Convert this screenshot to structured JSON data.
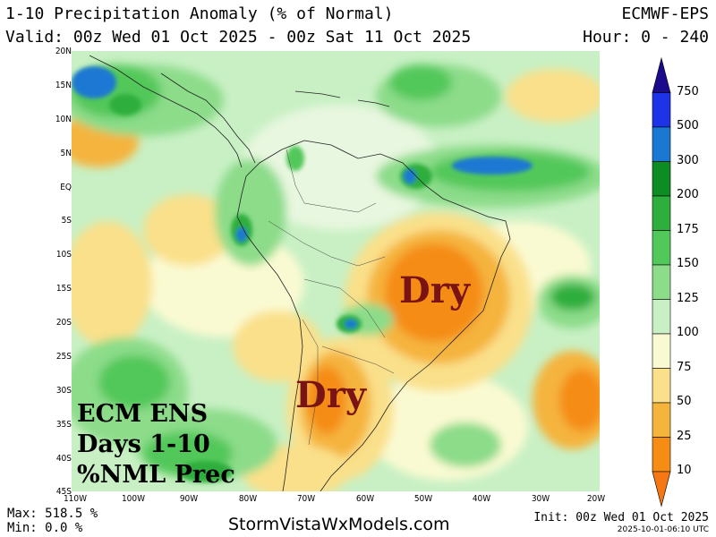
{
  "header": {
    "title": "1-10 Precipitation Anomaly (% of Normal)",
    "valid": "Valid: 00z Wed 01 Oct 2025 - 00z Sat 11 Oct 2025",
    "model": "ECMWF-EPS",
    "hour": "Hour: 0 - 240"
  },
  "axes": {
    "lat_labels": [
      "20N",
      "15N",
      "10N",
      "5N",
      "EQ",
      "5S",
      "10S",
      "15S",
      "20S",
      "25S",
      "30S",
      "35S",
      "40S",
      "45S"
    ],
    "lon_labels": [
      "110W",
      "100W",
      "90W",
      "80W",
      "70W",
      "60W",
      "50W",
      "40W",
      "30W",
      "20W"
    ]
  },
  "colorbar": {
    "labels": [
      "750",
      "500",
      "300",
      "200",
      "175",
      "150",
      "125",
      "100",
      "75",
      "50",
      "25",
      "10"
    ],
    "colors": [
      "#1c0a8c",
      "#1e32e6",
      "#1a78d2",
      "#0d8c24",
      "#2eae3c",
      "#52c85a",
      "#8cdc8a",
      "#c8f0c4",
      "#fafad2",
      "#fae08a",
      "#f5b43c",
      "#f58c14",
      "#f57814"
    ]
  },
  "annotations": {
    "dry_brazil": "Dry",
    "dry_argentina": "Dry",
    "ens_line1": "ECM ENS",
    "ens_line2": "Days 1-10",
    "ens_line3": "%NML Prec"
  },
  "footer": {
    "max": "Max: 518.5 %",
    "min": "Min: 0.0 %",
    "site": "StormVistaWxModels.com",
    "init": "Init: 00z Wed 01 Oct 2025",
    "timestamp": "2025-10-01-06:10 UTC"
  }
}
